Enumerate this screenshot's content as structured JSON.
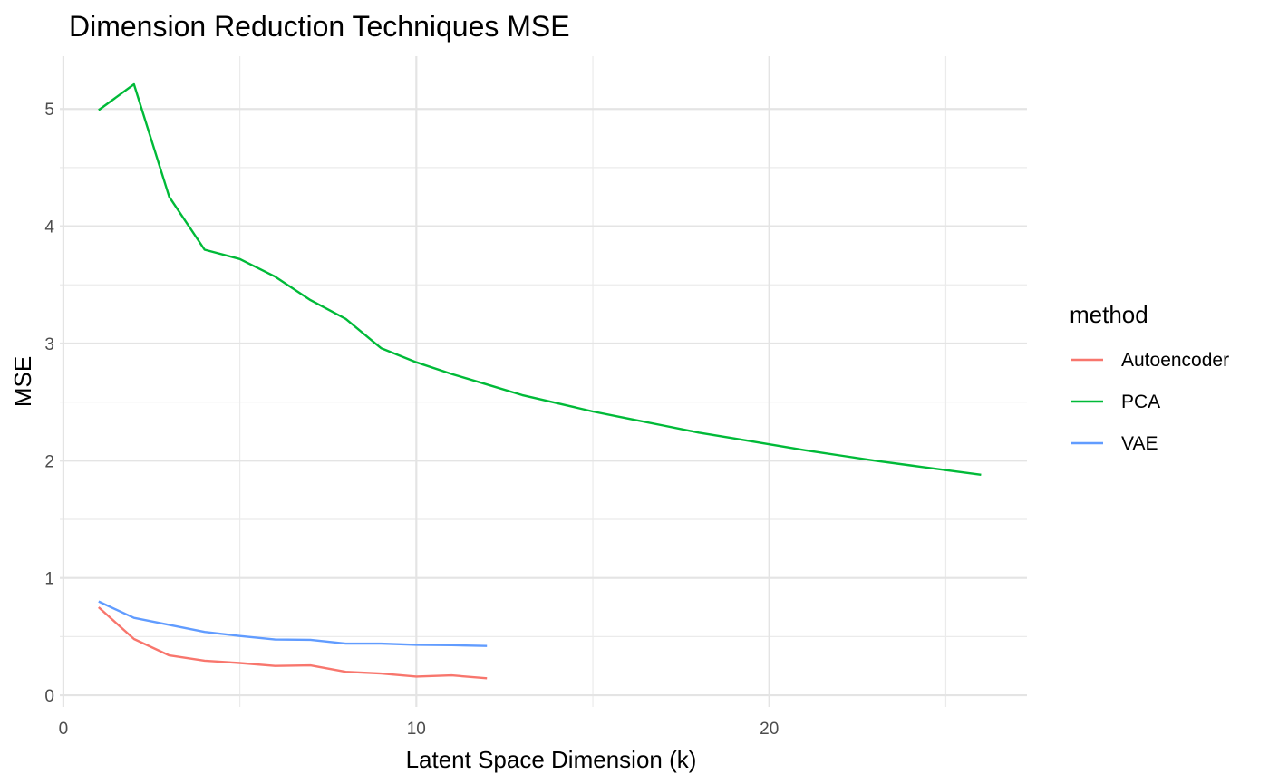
{
  "chart_data": {
    "type": "line",
    "title": "Dimension Reduction Techniques MSE",
    "xlabel": "Latent Space Dimension (k)",
    "ylabel": "MSE",
    "xlim": [
      -0.1,
      27.3
    ],
    "ylim": [
      -0.1,
      5.45
    ],
    "x_ticks": [
      0,
      10,
      20
    ],
    "y_ticks": [
      0,
      1,
      2,
      3,
      4,
      5
    ],
    "grid": true,
    "legend": {
      "title": "method",
      "position": "right"
    },
    "series": [
      {
        "name": "Autoencoder",
        "color": "#F8766D",
        "x": [
          1,
          2,
          3,
          4,
          5,
          6,
          7,
          8,
          9,
          10,
          11,
          12
        ],
        "y": [
          0.75,
          0.48,
          0.34,
          0.295,
          0.275,
          0.25,
          0.255,
          0.2,
          0.185,
          0.16,
          0.17,
          0.145
        ]
      },
      {
        "name": "PCA",
        "color": "#00BA38",
        "x": [
          1,
          2,
          3,
          4,
          5,
          6,
          7,
          8,
          9,
          10,
          11,
          12,
          13,
          14,
          15,
          16,
          17,
          18,
          19,
          20,
          21,
          22,
          23,
          24,
          25,
          26
        ],
        "y": [
          4.99,
          5.21,
          4.25,
          3.8,
          3.72,
          3.57,
          3.37,
          3.21,
          2.96,
          2.84,
          2.74,
          2.65,
          2.56,
          2.49,
          2.42,
          2.36,
          2.3,
          2.24,
          2.19,
          2.14,
          2.09,
          2.045,
          2.0,
          1.96,
          1.92,
          1.88
        ]
      },
      {
        "name": "VAE",
        "color": "#619CFF",
        "x": [
          1,
          2,
          3,
          4,
          5,
          6,
          7,
          8,
          9,
          10,
          11,
          12
        ],
        "y": [
          0.8,
          0.66,
          0.6,
          0.54,
          0.505,
          0.475,
          0.473,
          0.44,
          0.44,
          0.43,
          0.427,
          0.42
        ]
      }
    ]
  }
}
